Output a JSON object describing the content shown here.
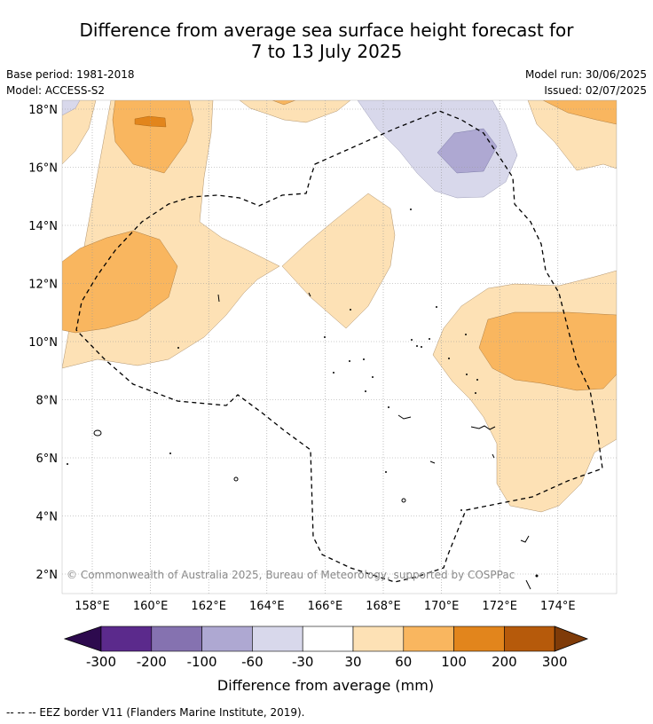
{
  "title_line1": "Difference from average sea surface height forecast for",
  "title_line2": "7 to 13 July 2025",
  "base_period": "Base period: 1981-2018",
  "model": "Model: ACCESS-S2",
  "model_run": "Model run: 30/06/2025",
  "issued": "Issued: 02/07/2025",
  "map": {
    "lat_labels": [
      "18°N",
      "16°N",
      "14°N",
      "12°N",
      "10°N",
      "8°N",
      "6°N",
      "4°N",
      "2°N"
    ],
    "lon_labels": [
      "158°E",
      "160°E",
      "162°E",
      "164°E",
      "166°E",
      "168°E",
      "170°E",
      "172°E",
      "174°E"
    ],
    "copyright": "© Commonwealth of Australia 2025, Bureau of Meteorology, supported by COSPPac"
  },
  "colorbar": {
    "ticks": [
      "-300",
      "-200",
      "-100",
      "-60",
      "-30",
      "30",
      "60",
      "100",
      "200",
      "300"
    ],
    "colors": [
      "#2d0a4e",
      "#5b2a8c",
      "#8572b0",
      "#aea8d2",
      "#d8d8eb",
      "#ffffff",
      "#fde1b5",
      "#f9b65f",
      "#e2851c",
      "#b65a0b",
      "#7f3b08"
    ],
    "label": "Difference from average (mm)"
  },
  "footer": "--  --  -- EEZ border V11 (Flanders Marine Institute, 2019)."
}
